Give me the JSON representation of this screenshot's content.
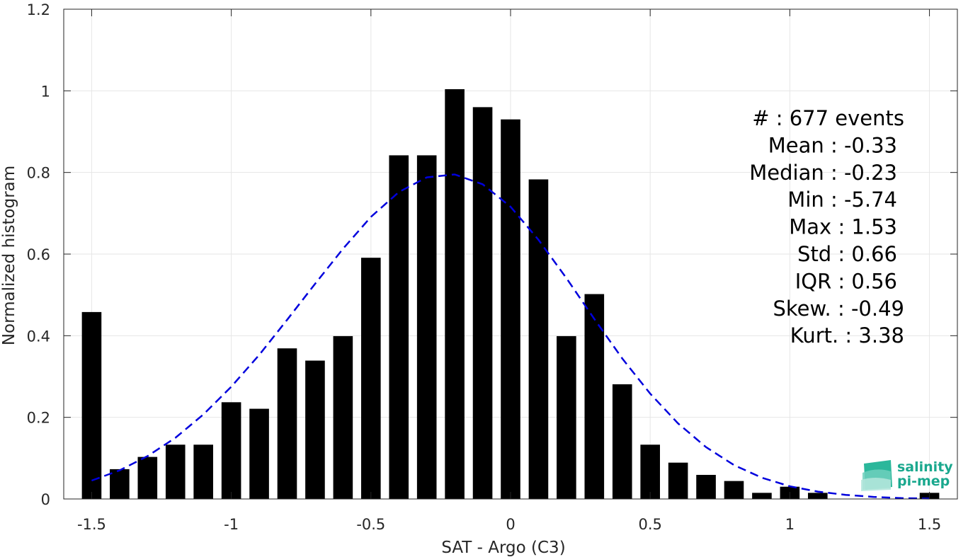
{
  "chart_data": {
    "type": "bar",
    "xlabel": "SAT - Argo (C3)",
    "ylabel": "Normalized histogram",
    "xlim": [
      -1.6,
      1.6
    ],
    "ylim": [
      0,
      1.2
    ],
    "xticks": [
      -1.5,
      -1,
      -0.5,
      0,
      0.5,
      1,
      1.5
    ],
    "xtick_labels": [
      "-1.5",
      "-1",
      "-0.5",
      "0",
      "0.5",
      "1",
      "1.5"
    ],
    "yticks": [
      0,
      0.2,
      0.4,
      0.6,
      0.8,
      1,
      1.2
    ],
    "ytick_labels": [
      "0",
      "0.2",
      "0.4",
      "0.6",
      "0.8",
      "1",
      "1.2"
    ],
    "grid": true,
    "bar_width": 0.07,
    "series": [
      {
        "type": "bar",
        "color": "#000000",
        "x": [
          -1.5,
          -1.4,
          -1.3,
          -1.2,
          -1.1,
          -1.0,
          -0.9,
          -0.8,
          -0.7,
          -0.6,
          -0.5,
          -0.4,
          -0.3,
          -0.2,
          -0.1,
          0.0,
          0.1,
          0.2,
          0.3,
          0.4,
          0.5,
          0.6,
          0.7,
          0.8,
          0.9,
          1.0,
          1.1,
          1.2,
          1.3,
          1.4,
          1.5
        ],
        "values": [
          0.458,
          0.073,
          0.103,
          0.133,
          0.133,
          0.237,
          0.221,
          0.369,
          0.339,
          0.399,
          0.591,
          0.842,
          0.842,
          1.004,
          0.96,
          0.93,
          0.783,
          0.399,
          0.502,
          0.281,
          0.133,
          0.089,
          0.059,
          0.044,
          0.015,
          0.03,
          0.015,
          0,
          0,
          0,
          0.015
        ]
      },
      {
        "type": "line",
        "style": "dashed",
        "color": "#0000dd",
        "x": [
          -1.5,
          -1.4,
          -1.3,
          -1.2,
          -1.1,
          -1.0,
          -0.9,
          -0.8,
          -0.7,
          -0.6,
          -0.5,
          -0.4,
          -0.3,
          -0.2,
          -0.1,
          0.0,
          0.1,
          0.2,
          0.3,
          0.4,
          0.5,
          0.6,
          0.7,
          0.8,
          0.9,
          1.0,
          1.1,
          1.2,
          1.3,
          1.4,
          1.5
        ],
        "values": [
          0.045,
          0.07,
          0.105,
          0.15,
          0.207,
          0.275,
          0.353,
          0.439,
          0.527,
          0.613,
          0.691,
          0.752,
          0.788,
          0.795,
          0.771,
          0.716,
          0.635,
          0.541,
          0.441,
          0.344,
          0.258,
          0.185,
          0.127,
          0.083,
          0.052,
          0.031,
          0.018,
          0.01,
          0.005,
          0.002,
          0.001
        ]
      }
    ],
    "annotations": [
      "#  : 677 events",
      "Mean : -0.33",
      "Median : -0.23",
      "Min : -5.74",
      "Max : 1.53",
      "Std : 0.66",
      "IQR : 0.56",
      "Skew. : -0.49",
      "Kurt. : 3.38"
    ]
  },
  "logo": {
    "line1": "salinity",
    "line2": "pi-mep",
    "color": "#1aa88e"
  }
}
